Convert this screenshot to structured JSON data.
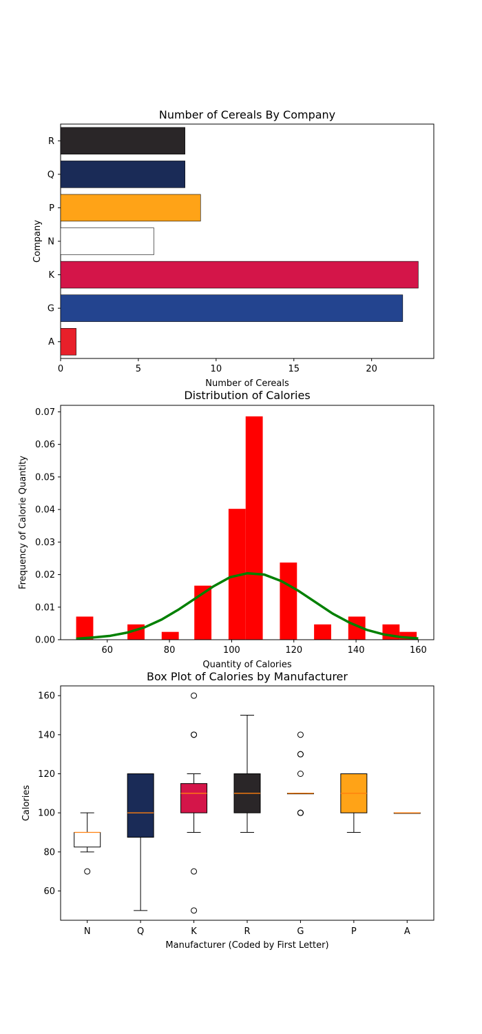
{
  "chart_data": [
    {
      "type": "bar",
      "orientation": "horizontal",
      "title": "Number of Cereals By Company",
      "xlabel": "Number of Cereals",
      "ylabel": "Company",
      "categories": [
        "A",
        "G",
        "K",
        "N",
        "P",
        "Q",
        "R"
      ],
      "values": [
        1,
        22,
        23,
        6,
        9,
        8,
        8
      ],
      "colors": [
        "#e8202a",
        "#23448f",
        "#d41549",
        "#ffffff",
        "#ffa317",
        "#1a2b57",
        "#2a2628"
      ],
      "xlim": [
        0,
        24
      ],
      "xticks": [
        0,
        5,
        10,
        15,
        20
      ],
      "grid": false
    },
    {
      "type": "bar",
      "subtype": "histogram_with_density_line",
      "title": "Distribution of Calories",
      "xlabel": "Quantity of Calories",
      "ylabel": "Frequency of Calorie Quantity",
      "bar_color": "#ff0000",
      "line_color": "#008000",
      "xlim": [
        45,
        165
      ],
      "ylim": [
        0,
        0.072
      ],
      "xticks": [
        60,
        80,
        100,
        120,
        140,
        160
      ],
      "yticks": [
        "0.00",
        "0.01",
        "0.02",
        "0.03",
        "0.04",
        "0.05",
        "0.06",
        "0.07"
      ],
      "bins": [
        {
          "x0": 50,
          "x1": 55.5,
          "value": 0.0071
        },
        {
          "x0": 66.5,
          "x1": 72,
          "value": 0.0047
        },
        {
          "x0": 77.5,
          "x1": 83,
          "value": 0.0024
        },
        {
          "x0": 88,
          "x1": 93.5,
          "value": 0.0166
        },
        {
          "x0": 99,
          "x1": 104.5,
          "value": 0.0402
        },
        {
          "x0": 104.5,
          "x1": 110,
          "value": 0.0686
        },
        {
          "x0": 115.5,
          "x1": 121,
          "value": 0.0237
        },
        {
          "x0": 126.5,
          "x1": 132,
          "value": 0.0047
        },
        {
          "x0": 137.5,
          "x1": 143,
          "value": 0.0071
        },
        {
          "x0": 148.5,
          "x1": 154,
          "value": 0.0047
        },
        {
          "x0": 154,
          "x1": 159.5,
          "value": 0.0024
        }
      ],
      "density_line": {
        "x": [
          50,
          55.5,
          61,
          66.5,
          72,
          77.5,
          83,
          88.5,
          94,
          99.5,
          105,
          110.5,
          116,
          121.5,
          127,
          132.5,
          138,
          143.5,
          149,
          154.5,
          160
        ],
        "y": [
          0.0003,
          0.0007,
          0.0012,
          0.0022,
          0.0038,
          0.0062,
          0.0093,
          0.0128,
          0.0163,
          0.0192,
          0.0204,
          0.02,
          0.018,
          0.015,
          0.0115,
          0.008,
          0.0052,
          0.003,
          0.0016,
          0.0008,
          0.0004
        ]
      },
      "grid": false
    },
    {
      "type": "box",
      "title": "Box Plot of Calories by Manufacturer",
      "xlabel": "Manufacturer (Coded by First Letter)",
      "ylabel": "Calories",
      "ylim": [
        45,
        165
      ],
      "yticks": [
        60,
        80,
        100,
        120,
        140,
        160
      ],
      "median_color": "#ff7f0e",
      "boxes": [
        {
          "category": "N",
          "q1": 82.5,
          "median": 90,
          "q3": 90,
          "whisker_low": 80,
          "whisker_high": 100,
          "outliers": [
            70
          ],
          "color": "#ffffff"
        },
        {
          "category": "Q",
          "q1": 87.5,
          "median": 100,
          "q3": 120,
          "whisker_low": 50,
          "whisker_high": 120,
          "outliers": [],
          "color": "#1a2b57"
        },
        {
          "category": "K",
          "q1": 100,
          "median": 110,
          "q3": 115,
          "whisker_low": 90,
          "whisker_high": 120,
          "outliers": [
            160,
            140,
            140,
            70,
            50
          ],
          "color": "#d41549"
        },
        {
          "category": "R",
          "q1": 100,
          "median": 110,
          "q3": 120,
          "whisker_low": 90,
          "whisker_high": 150,
          "outliers": [],
          "color": "#2a2628"
        },
        {
          "category": "G",
          "q1": 110,
          "median": 110,
          "q3": 110,
          "whisker_low": 110,
          "whisker_high": 110,
          "outliers": [
            140,
            130,
            130,
            120,
            100,
            100,
            100
          ],
          "color": "#23448f"
        },
        {
          "category": "P",
          "q1": 100,
          "median": 110,
          "q3": 120,
          "whisker_low": 90,
          "whisker_high": 120,
          "outliers": [],
          "color": "#ffa317"
        },
        {
          "category": "A",
          "q1": 100,
          "median": 100,
          "q3": 100,
          "whisker_low": 100,
          "whisker_high": 100,
          "outliers": [],
          "color": "#ffa317"
        }
      ],
      "grid": false
    }
  ]
}
